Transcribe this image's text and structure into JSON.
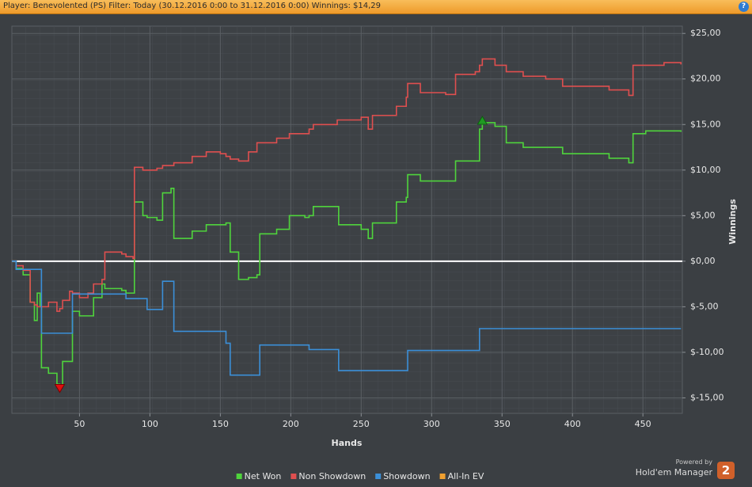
{
  "header": {
    "title": "Player: Benevolented (PS) Filter: Today (30.12.2016 0:00 to 31.12.2016 0:00) Winnings: $14,29",
    "help": "?"
  },
  "chart_data": {
    "type": "line",
    "step": true,
    "x_label": "Hands",
    "y_label": "Winnings",
    "x": [
      2,
      5,
      10,
      15,
      18,
      20,
      22,
      23,
      28,
      34,
      36,
      38,
      43,
      45,
      50,
      56,
      60,
      66,
      68,
      80,
      83,
      88,
      89,
      95,
      98,
      105,
      109,
      115,
      117,
      130,
      140,
      150,
      154,
      157,
      163,
      170,
      176,
      178,
      190,
      199,
      210,
      213,
      216,
      233,
      234,
      250,
      255,
      258,
      273,
      275,
      282,
      283,
      292,
      310,
      317,
      331,
      334,
      336,
      345,
      353,
      365,
      381,
      393,
      415,
      426,
      440,
      443,
      452,
      465,
      477
    ],
    "series": [
      {
        "name": "Net Won",
        "color": "#4fd43c",
        "values": [
          0,
          -0.8,
          -1.5,
          -4.5,
          -6.5,
          -3.5,
          -5,
          -11.7,
          -12.3,
          -13.5,
          -13.7,
          -11,
          -11,
          -5.5,
          -6,
          -6,
          -4,
          -2.5,
          -3,
          -3.2,
          -3.5,
          -3.5,
          6.5,
          5,
          4.8,
          4.5,
          7.5,
          8,
          2.5,
          3.3,
          4,
          4,
          4.2,
          1,
          -2,
          -1.8,
          -1.5,
          3,
          3.5,
          5,
          4.8,
          5,
          6,
          6,
          4,
          3.5,
          2.5,
          4.2,
          4.2,
          6.5,
          7,
          9.5,
          8.8,
          8.8,
          11,
          11,
          14.5,
          15.2,
          14.8,
          13,
          12.5,
          12.5,
          11.8,
          11.8,
          11.3,
          10.8,
          14,
          14.3,
          14.3,
          14.2
        ]
      },
      {
        "name": "Non Showdown",
        "color": "#df4f4f",
        "values": [
          0,
          -0.5,
          -1,
          -4.5,
          -4.8,
          -5,
          -5,
          -5,
          -4.5,
          -5.5,
          -5.2,
          -4.3,
          -3.3,
          -3.5,
          -4,
          -3.5,
          -2.5,
          -2,
          1,
          0.8,
          0.5,
          0.3,
          10.3,
          10,
          10,
          10.2,
          10.5,
          10.5,
          10.8,
          11.5,
          12,
          11.8,
          11.5,
          11.2,
          11,
          12,
          13,
          13,
          13.5,
          14,
          14,
          14.5,
          15,
          15.5,
          15.5,
          15.8,
          14.5,
          16,
          16,
          17,
          18,
          19.5,
          18.5,
          18.3,
          20.5,
          20.8,
          21.5,
          22.2,
          21.5,
          20.8,
          20.3,
          20,
          19.2,
          19.2,
          18.8,
          18.2,
          21.5,
          21.5,
          21.8,
          21.6
        ]
      },
      {
        "name": "Showdown",
        "color": "#3b8fd8",
        "values": [
          0,
          -0.9,
          -0.9,
          -0.9,
          -0.9,
          -0.9,
          -0.9,
          -7.9,
          -7.9,
          -7.9,
          -7.9,
          -7.9,
          -7.9,
          -3.6,
          -3.6,
          -3.6,
          -3.6,
          -3.6,
          -3.6,
          -3.6,
          -4.1,
          -4.1,
          -4.1,
          -4.1,
          -5.3,
          -5.3,
          -2.2,
          -2.2,
          -7.7,
          -7.7,
          -7.7,
          -7.7,
          -9,
          -12.5,
          -12.5,
          -12.5,
          -12.5,
          -9.2,
          -9.2,
          -9.2,
          -9.2,
          -9.7,
          -9.7,
          -9.7,
          -12,
          -12,
          -12,
          -12,
          -12,
          -12,
          -12,
          -9.8,
          -9.8,
          -9.8,
          -9.8,
          -9.8,
          -7.4,
          -7.4,
          -7.4,
          -7.4,
          -7.4,
          -7.4,
          -7.4,
          -7.4,
          -7.4,
          -7.4,
          -7.4,
          -7.4,
          -7.4,
          -7.4
        ]
      },
      {
        "name": "All-In EV",
        "color": "#f0a030",
        "values": [
          null,
          null,
          null,
          null,
          null,
          null,
          null,
          null,
          null,
          null,
          null,
          null,
          null,
          null,
          null,
          null,
          null,
          null,
          null,
          null,
          null,
          null,
          null,
          null,
          null,
          null,
          null,
          null,
          null,
          null,
          null,
          null,
          null,
          null,
          null,
          null,
          null,
          null,
          null,
          null,
          null,
          null,
          null,
          null,
          null,
          null,
          null,
          null,
          null,
          null,
          null,
          null,
          null,
          null,
          null,
          null,
          null,
          null,
          null,
          null,
          null,
          null,
          null,
          null,
          null,
          null,
          null,
          null,
          null,
          null
        ]
      }
    ],
    "xlim": [
      2,
      478
    ],
    "xticks": [
      50,
      100,
      150,
      200,
      250,
      300,
      350,
      400,
      450
    ],
    "ylim": [
      -16.7,
      25.8
    ],
    "yticks": [
      {
        "value": 25,
        "label": "$25,00"
      },
      {
        "value": 20,
        "label": "$20,00"
      },
      {
        "value": 15,
        "label": "$15,00"
      },
      {
        "value": 10,
        "label": "$10,00"
      },
      {
        "value": 5,
        "label": "$5,00"
      },
      {
        "value": 0,
        "label": "$0,00"
      },
      {
        "value": -5,
        "label": "$-5,00"
      },
      {
        "value": -10,
        "label": "$-10,00"
      },
      {
        "value": -15,
        "label": "$-15,00"
      }
    ],
    "grid": true,
    "legend": "bottom"
  },
  "footer": {
    "powered_by": "Powered by",
    "brand": "Hold'em Manager",
    "version": "2"
  }
}
